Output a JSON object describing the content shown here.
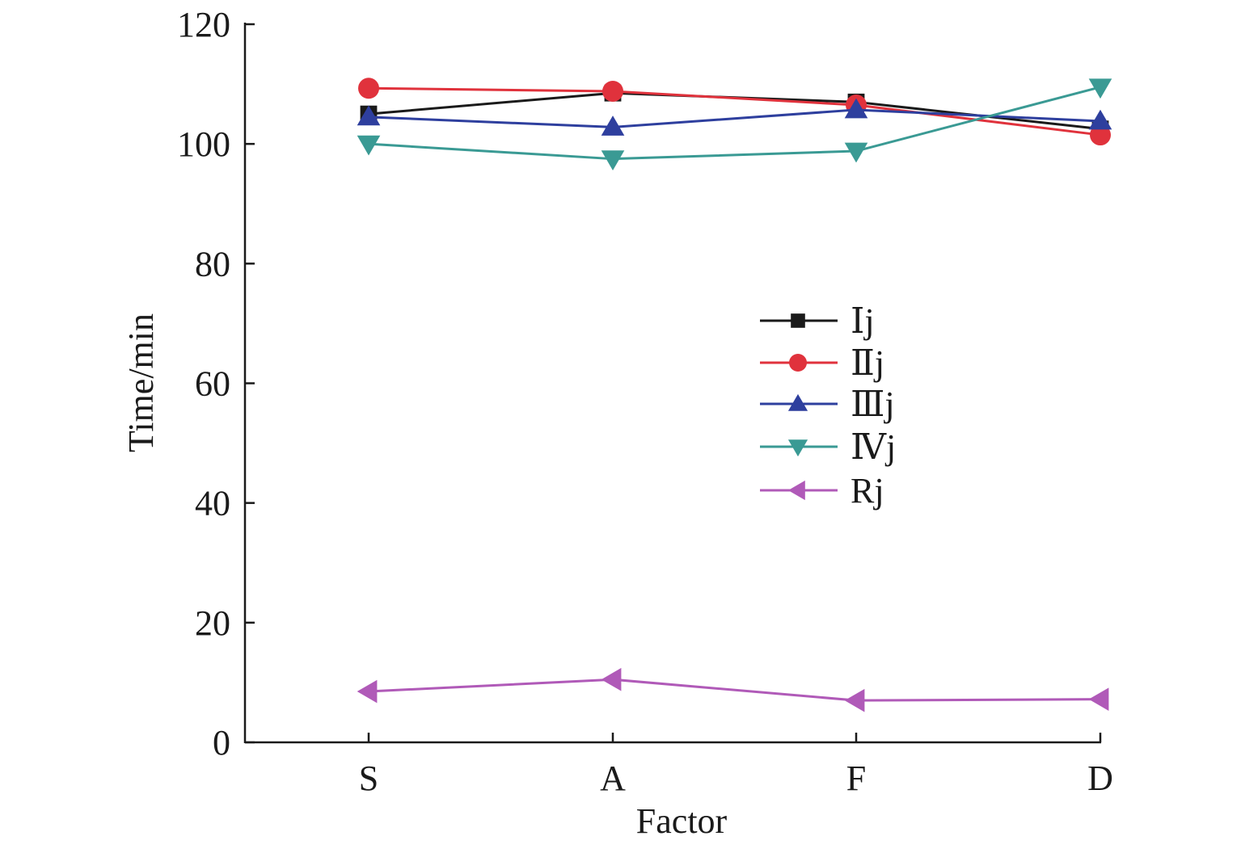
{
  "chart_data": {
    "type": "line",
    "xlabel": "Factor",
    "ylabel": "Time/min",
    "categories": [
      "S",
      "A",
      "F",
      "D"
    ],
    "ylim": [
      0,
      120
    ],
    "yticks": [
      0,
      20,
      40,
      60,
      80,
      100,
      120
    ],
    "grid": false,
    "legend_position": "center-right",
    "series": [
      {
        "name": "Ⅰj",
        "values": [
          105.0,
          108.5,
          107.0,
          102.5
        ],
        "color": "#1a1a1a",
        "marker": "square"
      },
      {
        "name": "Ⅱj",
        "values": [
          109.3,
          108.8,
          106.5,
          101.5
        ],
        "color": "#e0323c",
        "marker": "circle"
      },
      {
        "name": "Ⅲj",
        "values": [
          104.5,
          102.8,
          105.7,
          103.8
        ],
        "color": "#2e3f9e",
        "marker": "triangle-up"
      },
      {
        "name": "Ⅳj",
        "values": [
          100.0,
          97.5,
          98.8,
          109.5
        ],
        "color": "#3a9a94",
        "marker": "triangle-down"
      },
      {
        "name": "Rj",
        "values": [
          8.5,
          10.5,
          7.0,
          7.2
        ],
        "color": "#b05ab8",
        "marker": "triangle-left"
      }
    ]
  }
}
